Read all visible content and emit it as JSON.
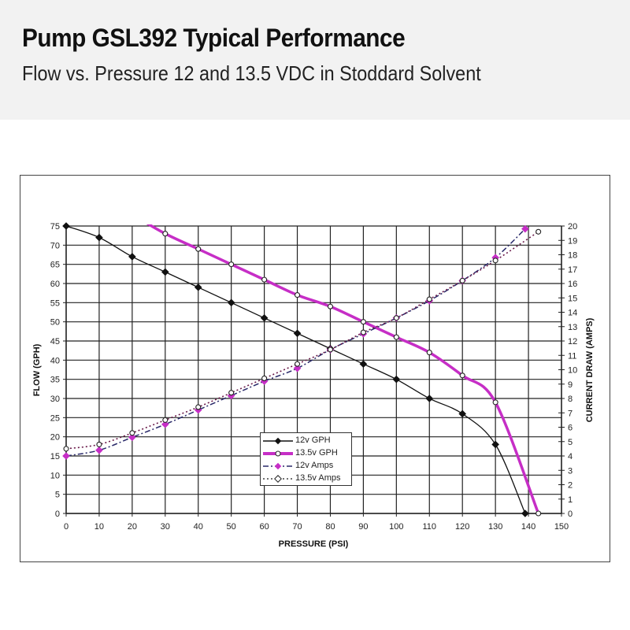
{
  "header": {
    "title": "Pump GSL392 Typical Performance",
    "subtitle": "Flow vs. Pressure 12 and 13.5 VDC in Stoddard Solvent"
  },
  "colors": {
    "header_bg": "#f2f2f2",
    "gph_12v": "#111111",
    "gph_13_5v": "#c62ec6",
    "amps_12v": "#2a2a6a",
    "amps_12v_marker": "#c62ec6",
    "amps_13_5v": "#6a1a4a",
    "grid": "#222222"
  },
  "legend": {
    "items": [
      {
        "label": "12v GPH"
      },
      {
        "label": "13.5v GPH"
      },
      {
        "label": "12v Amps"
      },
      {
        "label": "13.5v Amps"
      }
    ]
  },
  "chart_data": {
    "type": "line",
    "title": "Pump GSL392 Typical Performance",
    "subtitle": "Flow vs. Pressure 12 and 13.5 VDC in Stoddard Solvent",
    "xlabel": "PRESSURE (PSI)",
    "ylabel": "FLOW (GPH)",
    "y2label": "CURRENT DRAW (AMPS)",
    "xlim": [
      0,
      150
    ],
    "ylim": [
      0,
      75
    ],
    "y2lim": [
      0,
      20
    ],
    "xticks": [
      0,
      10,
      20,
      30,
      40,
      50,
      60,
      70,
      80,
      90,
      100,
      110,
      120,
      130,
      140,
      150
    ],
    "yticks": [
      0,
      5,
      10,
      15,
      20,
      25,
      30,
      35,
      40,
      45,
      50,
      55,
      60,
      65,
      70,
      75
    ],
    "y2ticks": [
      0,
      1,
      2,
      3,
      4,
      5,
      6,
      7,
      8,
      9,
      10,
      11,
      12,
      13,
      14,
      15,
      16,
      17,
      18,
      19,
      20
    ],
    "grid": true,
    "legend_position": "inside-lower-center",
    "series": [
      {
        "name": "12v GPH",
        "axis": "left",
        "x": [
          0,
          10,
          20,
          30,
          40,
          50,
          60,
          70,
          80,
          90,
          100,
          110,
          120,
          130,
          139
        ],
        "values": [
          75,
          72,
          67,
          63,
          59,
          55,
          51,
          47,
          43,
          39,
          35,
          30,
          26,
          18,
          0
        ]
      },
      {
        "name": "13.5v GPH",
        "axis": "left",
        "x": [
          20,
          30,
          40,
          50,
          60,
          70,
          80,
          90,
          100,
          110,
          120,
          130,
          143
        ],
        "values": [
          78,
          73,
          69,
          65,
          61,
          57,
          54,
          50,
          46,
          42,
          36,
          29,
          0
        ]
      },
      {
        "name": "12v Amps",
        "axis": "right",
        "x": [
          0,
          10,
          20,
          30,
          40,
          50,
          60,
          70,
          80,
          90,
          100,
          110,
          120,
          130,
          139
        ],
        "values": [
          4.0,
          4.4,
          5.3,
          6.2,
          7.2,
          8.2,
          9.2,
          10.1,
          11.4,
          12.5,
          13.6,
          14.8,
          16.2,
          17.8,
          19.8
        ]
      },
      {
        "name": "13.5v Amps",
        "axis": "right",
        "x": [
          0,
          10,
          20,
          30,
          40,
          50,
          60,
          70,
          80,
          90,
          100,
          110,
          120,
          130,
          143
        ],
        "values": [
          4.5,
          4.8,
          5.6,
          6.5,
          7.4,
          8.4,
          9.4,
          10.4,
          11.4,
          12.6,
          13.6,
          14.9,
          16.2,
          17.6,
          19.6
        ]
      }
    ]
  }
}
